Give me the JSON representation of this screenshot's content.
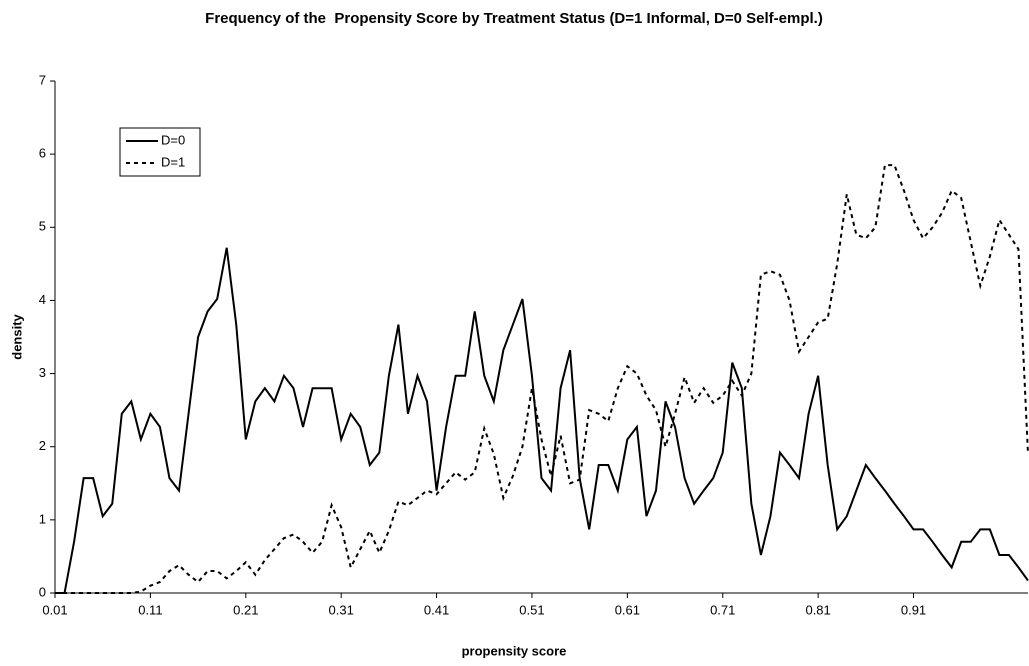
{
  "chart_data": {
    "type": "line",
    "title": "Frequency of the  Propensity Score by Treatment Status (D=1 Informal, D=0 Self-empl.)",
    "x_label": "propensity score",
    "y_label": "density",
    "x": [
      0.01,
      0.02,
      0.03,
      0.04,
      0.05,
      0.06,
      0.07,
      0.08,
      0.09,
      0.1,
      0.11,
      0.12,
      0.13,
      0.14,
      0.15,
      0.16,
      0.17,
      0.18,
      0.19,
      0.2,
      0.21,
      0.22,
      0.23,
      0.24,
      0.25,
      0.26,
      0.27,
      0.28,
      0.29,
      0.3,
      0.31,
      0.32,
      0.33,
      0.34,
      0.35,
      0.36,
      0.37,
      0.38,
      0.39,
      0.4,
      0.41,
      0.42,
      0.43,
      0.44,
      0.45,
      0.46,
      0.47,
      0.48,
      0.49,
      0.5,
      0.51,
      0.52,
      0.53,
      0.54,
      0.55,
      0.56,
      0.57,
      0.58,
      0.59,
      0.6,
      0.61,
      0.62,
      0.63,
      0.64,
      0.65,
      0.66,
      0.67,
      0.68,
      0.69,
      0.7,
      0.71,
      0.72,
      0.73,
      0.74,
      0.75,
      0.76,
      0.77,
      0.78,
      0.79,
      0.8,
      0.81,
      0.82,
      0.83,
      0.84,
      0.85,
      0.86,
      0.87,
      0.88,
      0.89,
      0.9,
      0.91,
      0.92,
      0.93,
      0.94,
      0.95,
      0.96,
      0.97,
      0.98,
      0.99,
      1.0,
      1.01,
      1.02,
      1.03
    ],
    "series": [
      {
        "name": "D=0",
        "color": "#000000",
        "dash": "solid",
        "values": [
          0,
          0,
          0.7,
          1.57,
          1.57,
          1.05,
          1.22,
          2.45,
          2.62,
          2.1,
          2.45,
          2.27,
          1.57,
          1.4,
          2.45,
          3.5,
          3.85,
          4.02,
          4.72,
          3.67,
          2.1,
          2.62,
          2.8,
          2.62,
          2.97,
          2.8,
          2.27,
          2.8,
          2.8,
          2.8,
          2.1,
          2.45,
          2.27,
          1.75,
          1.92,
          2.97,
          3.67,
          2.45,
          2.97,
          2.62,
          1.4,
          2.27,
          2.97,
          2.97,
          3.85,
          2.97,
          2.62,
          3.32,
          3.67,
          4.02,
          2.97,
          1.57,
          1.4,
          2.8,
          3.32,
          1.57,
          0.87,
          1.75,
          1.75,
          1.4,
          2.1,
          2.27,
          1.05,
          1.4,
          2.62,
          2.27,
          1.57,
          1.22,
          1.4,
          1.57,
          1.92,
          3.15,
          2.8,
          1.22,
          0.52,
          1.05,
          1.92,
          1.75,
          1.57,
          2.45,
          2.97,
          1.75,
          0.87,
          1.05,
          1.4,
          1.75,
          1.57,
          1.4,
          1.22,
          1.05,
          0.87,
          0.87,
          0.7,
          0.52,
          0.35,
          0.7,
          0.7,
          0.87,
          0.87,
          0.52,
          0.52,
          0.35,
          0.17
        ]
      },
      {
        "name": "D=1",
        "color": "#000000",
        "dash": "dashed",
        "values": [
          0,
          0,
          0,
          0,
          0,
          0,
          0,
          0,
          0,
          0.02,
          0.1,
          0.15,
          0.3,
          0.38,
          0.25,
          0.15,
          0.3,
          0.3,
          0.2,
          0.3,
          0.42,
          0.25,
          0.45,
          0.6,
          0.75,
          0.8,
          0.7,
          0.55,
          0.7,
          1.2,
          0.9,
          0.35,
          0.6,
          0.85,
          0.55,
          0.85,
          1.25,
          1.2,
          1.3,
          1.4,
          1.35,
          1.5,
          1.65,
          1.55,
          1.65,
          2.25,
          1.9,
          1.3,
          1.6,
          2.0,
          2.8,
          2.1,
          1.6,
          2.15,
          1.5,
          1.55,
          2.5,
          2.45,
          2.35,
          2.8,
          3.1,
          3.0,
          2.7,
          2.5,
          2.0,
          2.45,
          2.95,
          2.6,
          2.8,
          2.6,
          2.7,
          2.9,
          2.7,
          3.0,
          4.35,
          4.4,
          4.35,
          4.0,
          3.3,
          3.5,
          3.7,
          3.75,
          4.5,
          5.45,
          4.9,
          4.85,
          5.0,
          5.85,
          5.85,
          5.5,
          5.1,
          4.85,
          5.0,
          5.2,
          5.5,
          5.4,
          4.8,
          4.2,
          4.6,
          5.1,
          4.9,
          4.7,
          1.9
        ]
      }
    ],
    "xlim": [
      0.01,
      1.03
    ],
    "xticks": [
      0.01,
      0.11,
      0.21,
      0.31,
      0.41,
      0.51,
      0.61,
      0.71,
      0.81,
      0.91
    ],
    "ylim": [
      0,
      7
    ],
    "yticks": [
      0,
      1,
      2,
      3,
      4,
      5,
      6,
      7
    ],
    "grid": false,
    "legend": "upper left"
  }
}
